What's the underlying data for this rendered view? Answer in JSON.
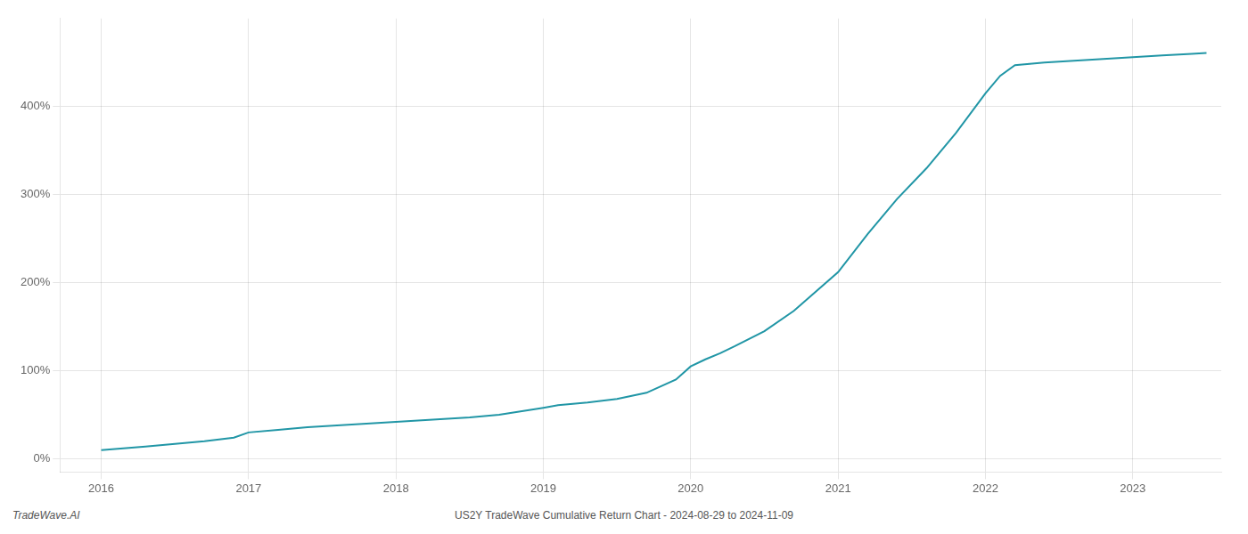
{
  "chart_data": {
    "type": "line",
    "annotations": [
      "TradeWave.AI",
      "US2Y TradeWave Cumulative Return Chart - 2024-08-29 to 2024-11-09"
    ],
    "x": [
      2016.0,
      2016.15,
      2016.3,
      2016.5,
      2016.7,
      2016.9,
      2017.0,
      2017.2,
      2017.4,
      2017.6,
      2017.8,
      2018.0,
      2018.2,
      2018.5,
      2018.7,
      2019.0,
      2019.1,
      2019.3,
      2019.5,
      2019.7,
      2019.9,
      2020.0,
      2020.1,
      2020.2,
      2020.3,
      2020.5,
      2020.7,
      2021.0,
      2021.2,
      2021.4,
      2021.6,
      2021.8,
      2022.0,
      2022.1,
      2022.2,
      2022.4,
      2022.6,
      2022.8,
      2023.0,
      2023.2,
      2023.4,
      2023.5
    ],
    "values": [
      10,
      12,
      14,
      17,
      20,
      24,
      30,
      33,
      36,
      38,
      40,
      42,
      44,
      47,
      50,
      58,
      61,
      64,
      68,
      75,
      90,
      105,
      113,
      120,
      128,
      145,
      168,
      212,
      255,
      295,
      330,
      370,
      415,
      435,
      447,
      450,
      452,
      454,
      456,
      458,
      460,
      461
    ],
    "color": "#2196a6",
    "xlim": [
      2015.72,
      2023.6
    ],
    "xticks": [
      2016,
      2017,
      2018,
      2019,
      2020,
      2021,
      2022,
      2023
    ],
    "ylim": [
      -15,
      500
    ],
    "yticks": [
      {
        "value": 0,
        "label": "0%"
      },
      {
        "value": 100,
        "label": "100%"
      },
      {
        "value": 200,
        "label": "200%"
      },
      {
        "value": 300,
        "label": "300%"
      },
      {
        "value": 400,
        "label": "400%"
      }
    ],
    "grid": true
  }
}
